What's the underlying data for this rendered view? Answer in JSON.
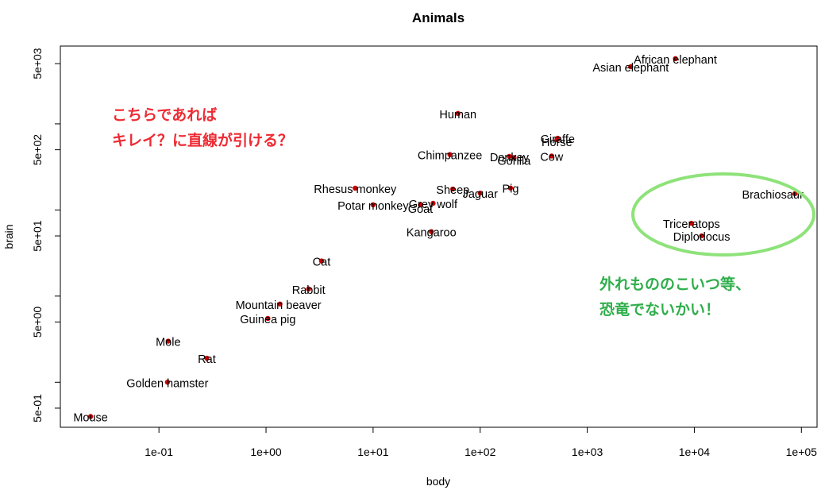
{
  "chart_data": {
    "type": "scatter",
    "title": "Animals",
    "xlabel": "body",
    "ylabel": "brain",
    "log_x": true,
    "log_y": true,
    "xlim": [
      0.012,
      140000
    ],
    "ylim": [
      0.3,
      8000
    ],
    "x_ticks": [
      {
        "value": 0.1,
        "label": "1e-01"
      },
      {
        "value": 1,
        "label": "1e+00"
      },
      {
        "value": 10,
        "label": "1e+01"
      },
      {
        "value": 100,
        "label": "1e+02"
      },
      {
        "value": 1000,
        "label": "1e+03"
      },
      {
        "value": 10000,
        "label": "1e+04"
      },
      {
        "value": 100000,
        "label": "1e+05"
      }
    ],
    "y_ticks": [
      {
        "value": 0.5,
        "label": "5e-01"
      },
      {
        "value": 1,
        "label": ""
      },
      {
        "value": 5,
        "label": "5e+00"
      },
      {
        "value": 10,
        "label": ""
      },
      {
        "value": 50,
        "label": "5e+01"
      },
      {
        "value": 100,
        "label": ""
      },
      {
        "value": 500,
        "label": "5e+02"
      },
      {
        "value": 1000,
        "label": ""
      },
      {
        "value": 5000,
        "label": "5e+03"
      }
    ],
    "point_color": "#cc0000",
    "points": [
      {
        "name": "Mountain beaver",
        "x": 1.35,
        "y": 8.1
      },
      {
        "name": "Cow",
        "x": 465,
        "y": 423
      },
      {
        "name": "Grey wolf",
        "x": 36.33,
        "y": 119.5
      },
      {
        "name": "Goat",
        "x": 27.66,
        "y": 115
      },
      {
        "name": "Guinea pig",
        "x": 1.04,
        "y": 5.5
      },
      {
        "name": "Diplodocus",
        "x": 11700,
        "y": 50
      },
      {
        "name": "Asian elephant",
        "x": 2547,
        "y": 4603
      },
      {
        "name": "Donkey",
        "x": 187.1,
        "y": 419
      },
      {
        "name": "Horse",
        "x": 521,
        "y": 655
      },
      {
        "name": "Potar monkey",
        "x": 10,
        "y": 115
      },
      {
        "name": "Cat",
        "x": 3.3,
        "y": 25.6
      },
      {
        "name": "Giraffe",
        "x": 529,
        "y": 680
      },
      {
        "name": "Gorilla",
        "x": 207,
        "y": 406
      },
      {
        "name": "Human",
        "x": 62,
        "y": 1320
      },
      {
        "name": "African elephant",
        "x": 6654,
        "y": 5712
      },
      {
        "name": "Triceratops",
        "x": 9400,
        "y": 70
      },
      {
        "name": "Rhesus monkey",
        "x": 6.8,
        "y": 179
      },
      {
        "name": "Kangaroo",
        "x": 35,
        "y": 56
      },
      {
        "name": "Golden hamster",
        "x": 0.12,
        "y": 1
      },
      {
        "name": "Mouse",
        "x": 0.023,
        "y": 0.4
      },
      {
        "name": "Rabbit",
        "x": 2.5,
        "y": 12.1
      },
      {
        "name": "Sheep",
        "x": 55.5,
        "y": 175
      },
      {
        "name": "Jaguar",
        "x": 100,
        "y": 157
      },
      {
        "name": "Chimpanzee",
        "x": 52.16,
        "y": 440
      },
      {
        "name": "Rat",
        "x": 0.28,
        "y": 1.9
      },
      {
        "name": "Brachiosaurus",
        "x": 87000,
        "y": 154.5
      },
      {
        "name": "Mole",
        "x": 0.122,
        "y": 3
      },
      {
        "name": "Pig",
        "x": 192,
        "y": 180
      }
    ],
    "labels": [
      {
        "text": "Mountain beaver",
        "for": "Mountain beaver",
        "dx": -2,
        "dy": 1
      },
      {
        "text": "Cow",
        "for": "Cow",
        "dx": 0,
        "dy": 1
      },
      {
        "text": "Grey wolf",
        "for": "Grey wolf",
        "dx": 0,
        "dy": 1
      },
      {
        "text": "Goat",
        "for": "Goat",
        "dx": 0,
        "dy": 5
      },
      {
        "text": "Guinea pig",
        "for": "Guinea pig",
        "dx": 0,
        "dy": 1
      },
      {
        "text": "Diplodocus",
        "for": "Diplodocus",
        "dx": 0,
        "dy": 1
      },
      {
        "text": "Asian elephant",
        "for": "Asian elephant",
        "dx": 0,
        "dy": 1
      },
      {
        "text": "Donkey",
        "for": "Donkey",
        "dx": 0,
        "dy": 1
      },
      {
        "text": "Horse",
        "for": "Horse",
        "dx": 0,
        "dy": 3
      },
      {
        "text": "Potar monkey",
        "for": "Potar monkey",
        "dx": 0,
        "dy": 1
      },
      {
        "text": "Cat",
        "for": "Cat",
        "dx": 0,
        "dy": 1
      },
      {
        "text": "Giraffe",
        "for": "Giraffe",
        "dx": 0,
        "dy": 1
      },
      {
        "text": "Gorilla",
        "for": "Gorilla",
        "dx": 0,
        "dy": 4
      },
      {
        "text": "Human",
        "for": "Human",
        "dx": 0,
        "dy": 1
      },
      {
        "text": "African elephant",
        "for": "African elephant",
        "dx": 0,
        "dy": 1
      },
      {
        "text": "Triceratops",
        "for": "Triceratops",
        "dx": 0,
        "dy": 1
      },
      {
        "text": "Rhesus monkey",
        "for": "Rhesus monkey",
        "dx": 0,
        "dy": 1
      },
      {
        "text": "Kangaroo",
        "for": "Kangaroo",
        "dx": 0,
        "dy": 1
      },
      {
        "text": "Golden hamster",
        "for": "Golden hamster",
        "dx": 0,
        "dy": 1
      },
      {
        "text": "Mouse",
        "for": "Mouse",
        "dx": 0,
        "dy": 1
      },
      {
        "text": "Rabbit",
        "for": "Rabbit",
        "dx": 0,
        "dy": 1
      },
      {
        "text": "Sheep",
        "for": "Sheep",
        "dx": 0,
        "dy": 1
      },
      {
        "text": "Jaguar",
        "for": "Jaguar",
        "dx": 0,
        "dy": 1
      },
      {
        "text": "Chimpanzee",
        "for": "Chimpanzee",
        "dx": 0,
        "dy": 1
      },
      {
        "text": "Rat",
        "for": "Rat",
        "dx": 0,
        "dy": 1
      },
      {
        "text": "Brachiosaur",
        "for": "Brachiosaurus",
        "dx": -28,
        "dy": 1
      },
      {
        "text": "Mole",
        "for": "Mole",
        "dx": 0,
        "dy": 1
      },
      {
        "text": "Pig",
        "for": "Pig",
        "dx": 0,
        "dy": 1
      }
    ],
    "annotations": [
      {
        "text": "こちらであれば\nキレイ？に直線が引ける？",
        "color": "#ee2a33"
      },
      {
        "text": "外れもののこいつ等、\n恐竜でないかい！",
        "color": "#2eae4a"
      }
    ],
    "highlight_ellipse_color": "#8ee27a"
  }
}
